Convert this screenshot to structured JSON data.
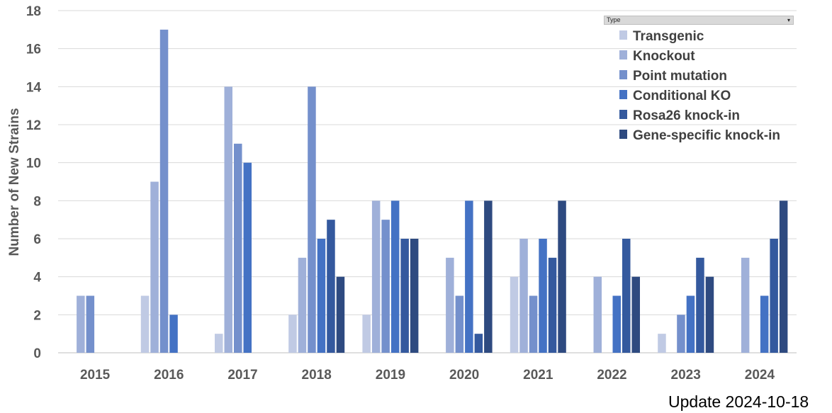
{
  "filter": {
    "label": "Type",
    "arrow": "▾"
  },
  "update_note": "Update 2024-10-18",
  "chart_data": {
    "type": "bar",
    "title": "",
    "xlabel": "",
    "ylabel": "Number of New Strains",
    "ylim": [
      0,
      18
    ],
    "yticks": [
      0,
      2,
      4,
      6,
      8,
      10,
      12,
      14,
      16,
      18
    ],
    "grid": true,
    "legend_position": "top-right",
    "categories": [
      "2015",
      "2016",
      "2017",
      "2018",
      "2019",
      "2020",
      "2021",
      "2022",
      "2023",
      "2024"
    ],
    "series": [
      {
        "name": "Transgenic",
        "color": "#c0cae4",
        "values": [
          0,
          3,
          1,
          2,
          2,
          0,
          4,
          0,
          1,
          0
        ]
      },
      {
        "name": "Knockout",
        "color": "#9fb0d9",
        "values": [
          3,
          9,
          14,
          5,
          8,
          5,
          6,
          4,
          0,
          5
        ]
      },
      {
        "name": "Point mutation",
        "color": "#7490cc",
        "values": [
          3,
          17,
          11,
          14,
          7,
          3,
          3,
          0,
          2,
          0
        ]
      },
      {
        "name": "Conditional KO",
        "color": "#4472c4",
        "values": [
          0,
          2,
          10,
          6,
          8,
          8,
          6,
          3,
          3,
          3
        ]
      },
      {
        "name": "Rosa26 knock-in",
        "color": "#34599e",
        "values": [
          0,
          0,
          0,
          7,
          6,
          1,
          5,
          6,
          5,
          6
        ]
      },
      {
        "name": "Gene-specific knock-in",
        "color": "#2e4a80",
        "values": [
          0,
          0,
          0,
          4,
          6,
          8,
          8,
          4,
          4,
          8
        ]
      }
    ]
  }
}
